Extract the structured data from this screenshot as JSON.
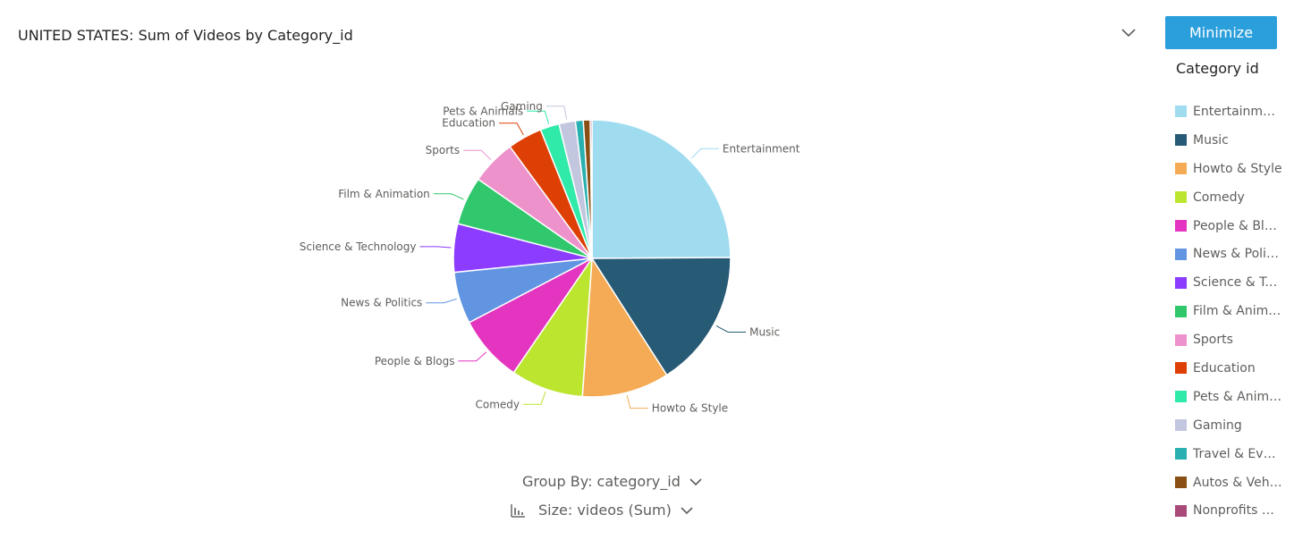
{
  "header": {
    "title": "UNITED STATES: Sum of Videos by Category_id",
    "collapse_icon": "chevron-down-icon",
    "minimize_label": "Minimize"
  },
  "legend": {
    "title": "Category id",
    "items": [
      {
        "label": "Entertainment",
        "color": "#a0dcf0"
      },
      {
        "label": "Music",
        "color": "#275a74"
      },
      {
        "label": "Howto & Style",
        "color": "#f5ab55"
      },
      {
        "label": "Comedy",
        "color": "#bce52f"
      },
      {
        "label": "People & Blogs",
        "color": "#e335bf"
      },
      {
        "label": "News & Politics",
        "color": "#6295e1"
      },
      {
        "label": "Science & Technology",
        "color": "#8b3cff"
      },
      {
        "label": "Film & Animation",
        "color": "#31c86d"
      },
      {
        "label": "Sports",
        "color": "#ee92cb"
      },
      {
        "label": "Education",
        "color": "#dd3f05"
      },
      {
        "label": "Pets & Animals",
        "color": "#2feaa8"
      },
      {
        "label": "Gaming",
        "color": "#c3c6df"
      },
      {
        "label": "Travel & Events",
        "color": "#29b0b0"
      },
      {
        "label": "Autos & Vehicles",
        "color": "#8a4f14"
      },
      {
        "label": "Nonprofits & Activism",
        "color": "#a9497a"
      }
    ]
  },
  "controls": {
    "group_by_label": "Group By: category_id",
    "size_by_label": "Size: videos (Sum)",
    "dropdown_icon": "chevron-down-icon",
    "size_icon": "bar-chart-icon"
  },
  "chart_data": {
    "type": "pie",
    "title": "UNITED STATES: Sum of Videos by Category_id",
    "legend_placement": "right",
    "slices": [
      {
        "label": "Entertainment",
        "value": 24.7,
        "color": "#a0dcf0",
        "show_label": true
      },
      {
        "label": "Music",
        "value": 15.9,
        "color": "#275a74",
        "show_label": true
      },
      {
        "label": "Howto & Style",
        "value": 10.1,
        "color": "#f5ab55",
        "show_label": true
      },
      {
        "label": "Comedy",
        "value": 8.4,
        "color": "#bce52f",
        "show_label": true
      },
      {
        "label": "People & Blogs",
        "value": 7.7,
        "color": "#e335bf",
        "show_label": true
      },
      {
        "label": "News & Politics",
        "value": 6.0,
        "color": "#6295e1",
        "show_label": true
      },
      {
        "label": "Science & Technology",
        "value": 5.6,
        "color": "#8b3cff",
        "show_label": true
      },
      {
        "label": "Film & Animation",
        "value": 5.6,
        "color": "#31c86d",
        "show_label": true
      },
      {
        "label": "Sports",
        "value": 5.2,
        "color": "#ee92cb",
        "show_label": true
      },
      {
        "label": "Education",
        "value": 4.0,
        "color": "#dd3f05",
        "show_label": true
      },
      {
        "label": "Pets & Animals",
        "value": 2.2,
        "color": "#2feaa8",
        "show_label": true
      },
      {
        "label": "Gaming",
        "value": 1.9,
        "color": "#c3c6df",
        "show_label": true
      },
      {
        "label": "Travel & Events",
        "value": 0.9,
        "color": "#29b0b0",
        "show_label": false
      },
      {
        "label": "Autos & Vehicles",
        "value": 0.8,
        "color": "#8a4f14",
        "show_label": false
      },
      {
        "label": "Nonprofits & Activism",
        "value": 0.2,
        "color": "#a9497a",
        "show_label": false
      }
    ]
  }
}
